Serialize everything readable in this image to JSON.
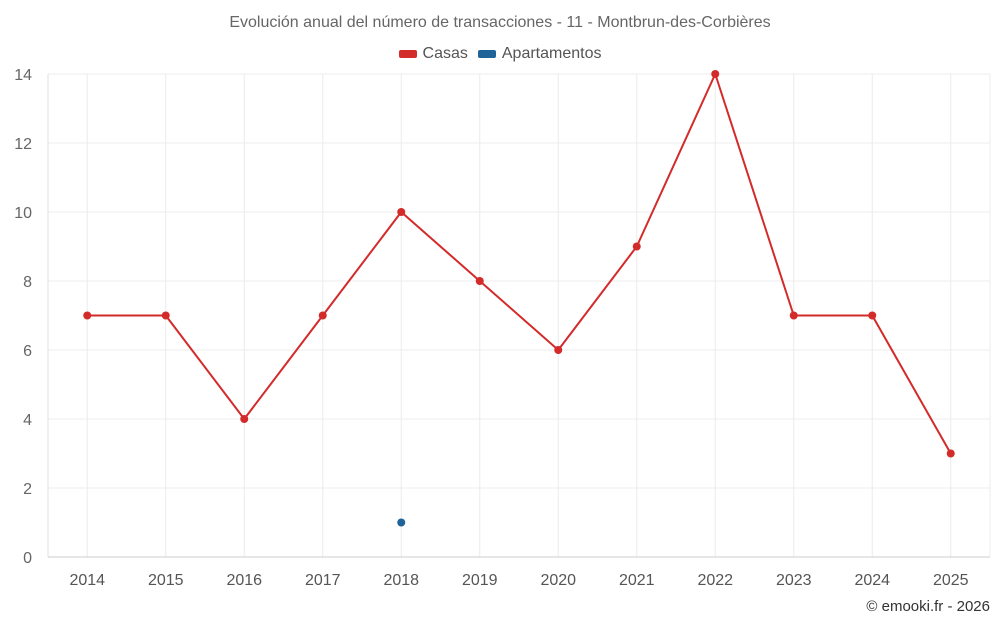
{
  "chart_data": {
    "type": "line",
    "title": "Evolución anual del número de transacciones - 11 - Montbrun-des-Corbières",
    "categories": [
      "2014",
      "2015",
      "2016",
      "2017",
      "2018",
      "2019",
      "2020",
      "2021",
      "2022",
      "2023",
      "2024",
      "2025"
    ],
    "series": [
      {
        "name": "Casas",
        "color": "#d32a2a",
        "values": [
          7,
          7,
          4,
          7,
          10,
          8,
          6,
          9,
          14,
          7,
          7,
          3
        ]
      },
      {
        "name": "Apartamentos",
        "color": "#1f6399",
        "values": [
          null,
          null,
          null,
          null,
          1,
          null,
          null,
          null,
          null,
          null,
          null,
          null
        ]
      }
    ],
    "ylim": [
      0,
      14
    ],
    "yticks": [
      0,
      2,
      4,
      6,
      8,
      10,
      12,
      14
    ],
    "xlabel": "",
    "ylabel": "",
    "grid": true,
    "legend_position": "top-center"
  },
  "footer": {
    "credit": "© emooki.fr - 2026"
  }
}
